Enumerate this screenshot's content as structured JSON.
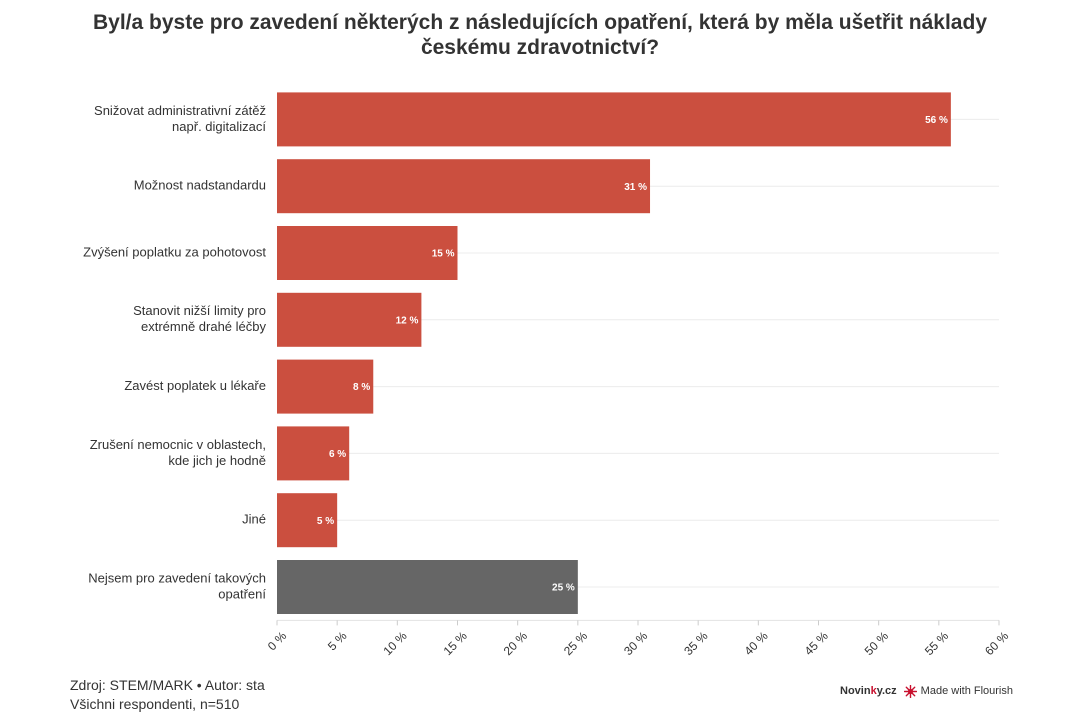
{
  "header": {
    "title_line1": "Byl/a byste pro zavedení některých z následujících opatření, která by měla ušetřit náklady",
    "title_line2": "českému zdravotnictví?"
  },
  "chart_data": {
    "type": "bar",
    "orientation": "horizontal",
    "categories": [
      [
        "Snižovat administrativní zátěž",
        "např. digitalizací"
      ],
      [
        "Možnost nadstandardu"
      ],
      [
        "Zvýšení poplatku za pohotovost"
      ],
      [
        "Stanovit nižší limity pro",
        "extrémně drahé léčby"
      ],
      [
        "Zavést poplatek u lékaře"
      ],
      [
        "Zrušení nemocnic v oblastech,",
        "kde jich je hodně"
      ],
      [
        "Jiné"
      ],
      [
        "Nejsem pro zavedení takových",
        "opatření"
      ]
    ],
    "values": [
      56,
      31,
      15,
      12,
      8,
      6,
      5,
      25
    ],
    "value_labels": [
      "56 %",
      "31 %",
      "15 %",
      "12 %",
      "8 %",
      "6 %",
      "5 %",
      "25 %"
    ],
    "bar_colors": [
      "#cb4f3f",
      "#cb4f3f",
      "#cb4f3f",
      "#cb4f3f",
      "#cb4f3f",
      "#cb4f3f",
      "#cb4f3f",
      "#666666"
    ],
    "xlim": [
      0,
      60
    ],
    "xticks": [
      0,
      5,
      10,
      15,
      20,
      25,
      30,
      35,
      40,
      45,
      50,
      55,
      60
    ],
    "xtick_labels": [
      "0 %",
      "5 %",
      "10 %",
      "15 %",
      "20 %",
      "25 %",
      "30 %",
      "35 %",
      "40 %",
      "45 %",
      "50 %",
      "55 %",
      "60 %"
    ],
    "grid": true,
    "xlabel": "",
    "ylabel": ""
  },
  "footer": {
    "source": "Zdroj: STEM/MARK • Autor: sta",
    "sample": "Všichni respondenti, n=510",
    "brand_prefix": "Novin",
    "brand_highlight": "k",
    "brand_suffix": "y.cz",
    "made_with": "Made with Flourish"
  },
  "colors": {
    "accent": "#cb4f3f",
    "neutral": "#666666",
    "brand": "#c8102e"
  }
}
